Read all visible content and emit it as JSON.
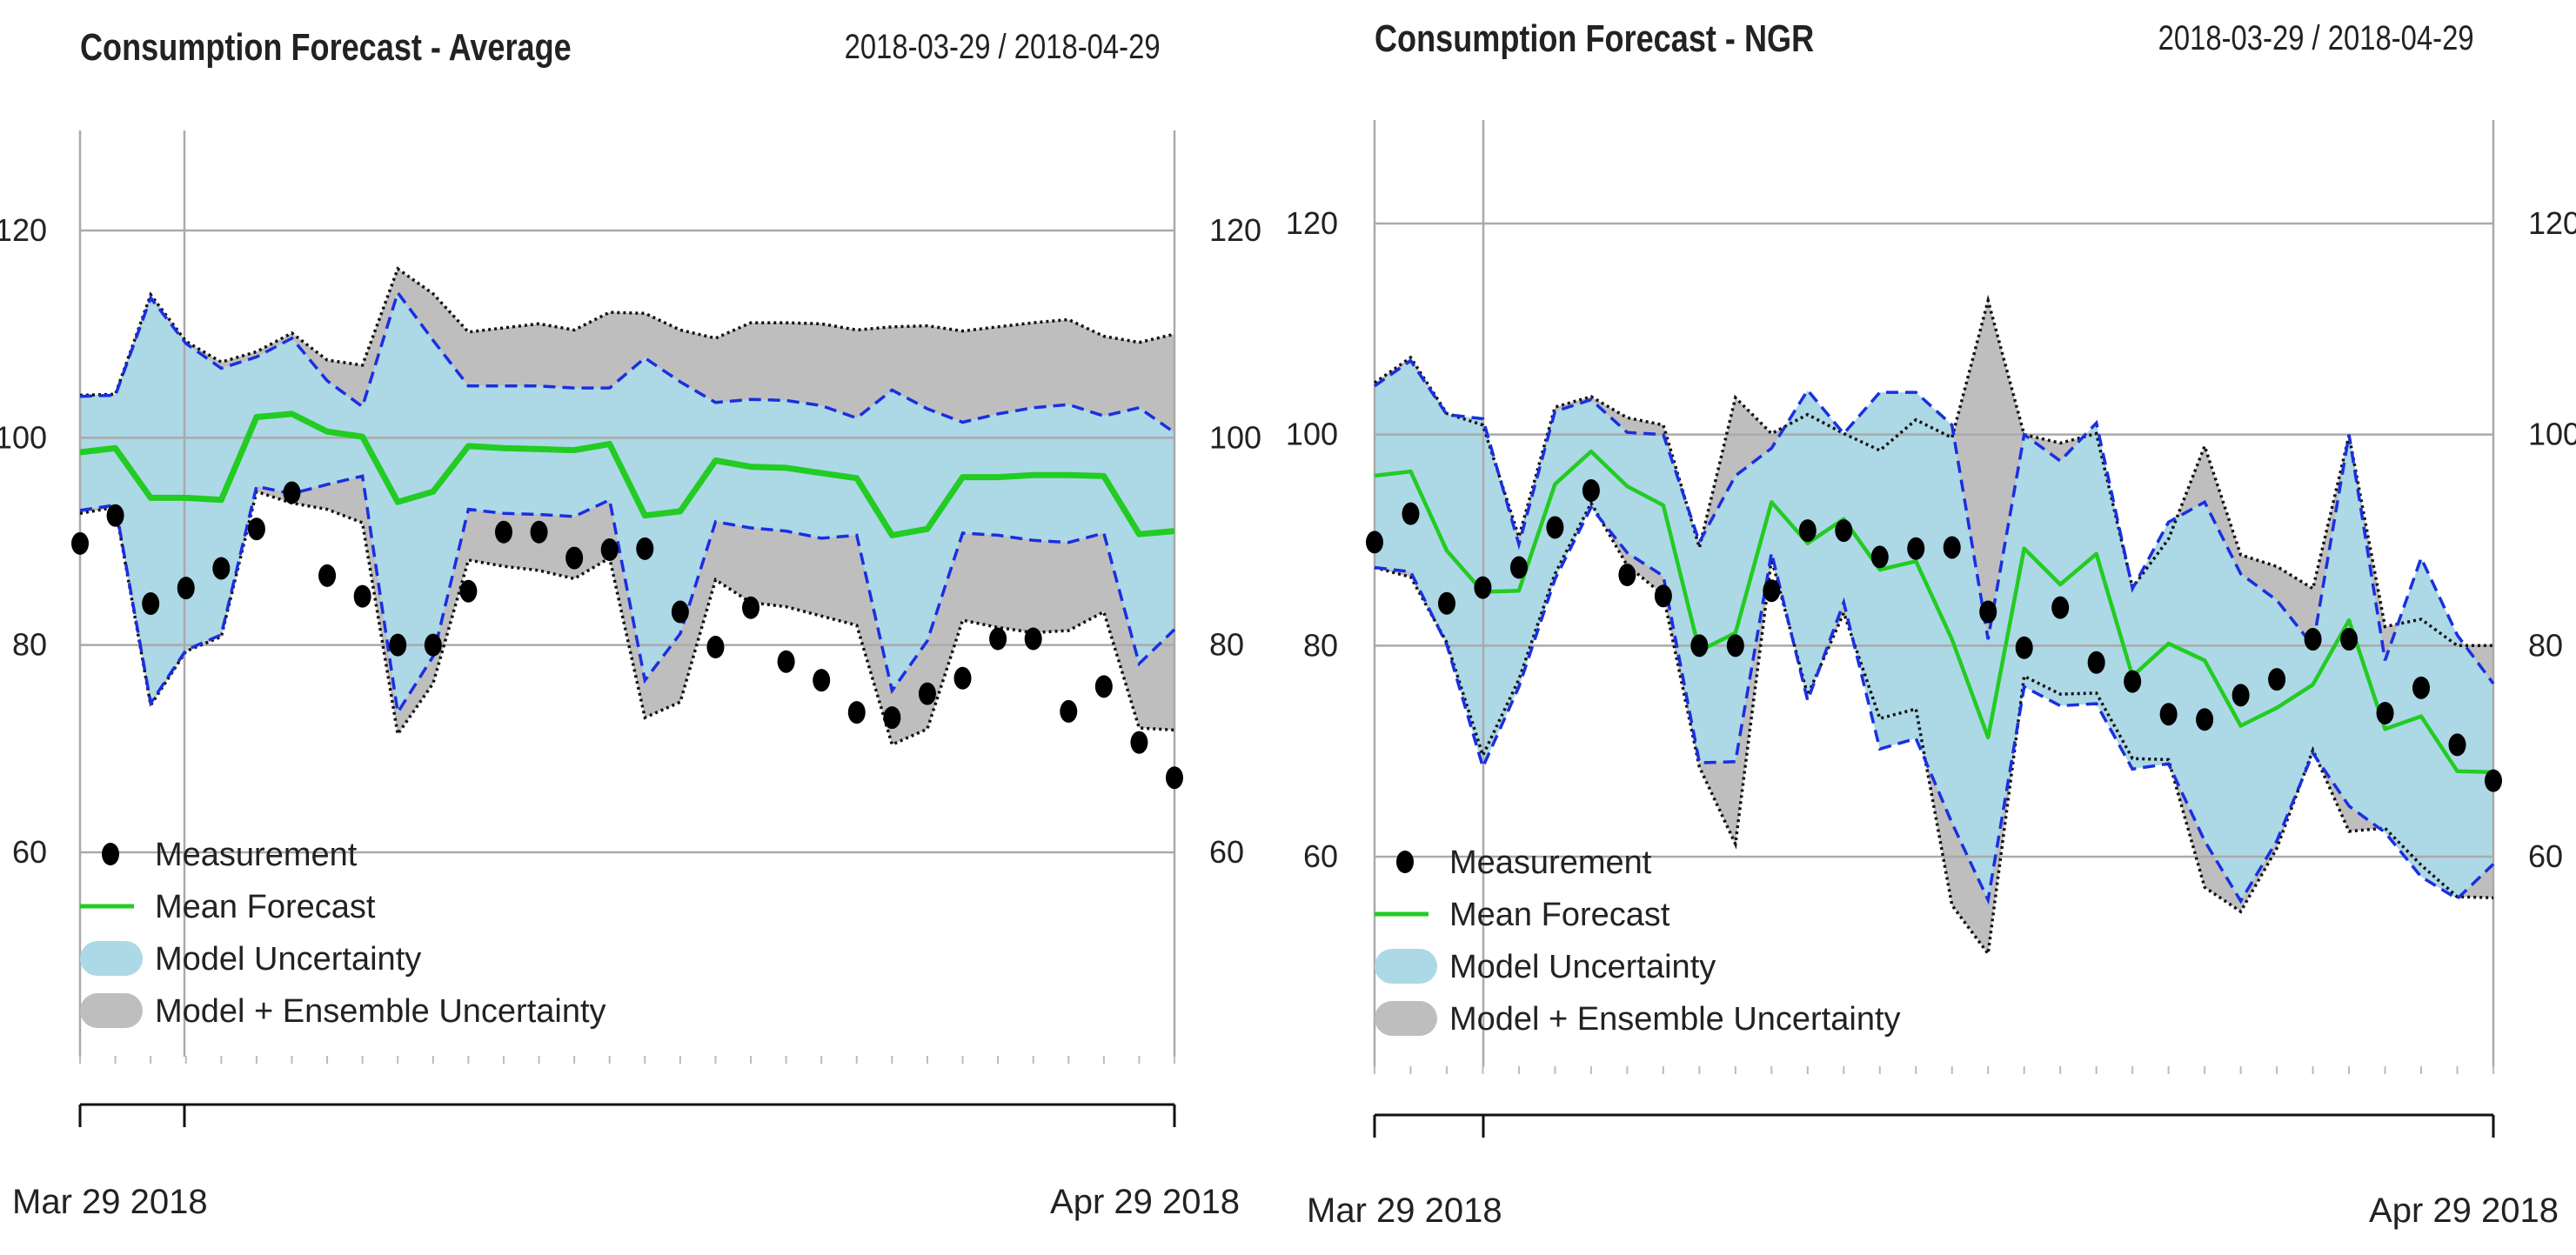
{
  "charts": [
    {
      "title": "Consumption Forecast - Average",
      "date_range": "2018-03-29 / 2018-04-29"
    },
    {
      "title": "Consumption Forecast - NGR",
      "date_range": "2018-03-29 / 2018-04-29"
    }
  ],
  "colors": {
    "measurement": "#000000",
    "mean_forecast": "#22cc22",
    "model_uncertainty": "#add8e6",
    "ensemble_uncertainty": "#bebebe",
    "model_bound": "#1a2fe0",
    "ensemble_bound": "#111111",
    "grid": "#aaaaaa"
  },
  "chart_data": [
    {
      "type": "line",
      "title": "Consumption Forecast - Average",
      "date_range": "2018-03-29 / 2018-04-29",
      "xlabel": "",
      "ylabel": "",
      "ylim": [
        40,
        130
      ],
      "yticks": [
        60,
        80,
        100,
        120
      ],
      "x_tick_labels": [
        {
          "day": 0,
          "label": "Mar 29 2018"
        },
        {
          "day": 31,
          "label": "Apr 29 2018"
        }
      ],
      "grid": true,
      "legend": [
        "Measurement",
        "Mean Forecast",
        "Model Uncertainty",
        "Model + Ensemble Uncertainty"
      ],
      "legend_position": "bottom-left",
      "series": [
        {
          "name": "Measurement",
          "kind": "points",
          "x": [
            0,
            1,
            2,
            3,
            4,
            5,
            6,
            7,
            8,
            9,
            10,
            11,
            12,
            13,
            14,
            15,
            16,
            17,
            18,
            19,
            20,
            21,
            22,
            23,
            24,
            25,
            26,
            27,
            28,
            29,
            30,
            31
          ],
          "values": [
            89.8,
            92.5,
            84,
            85.5,
            87.4,
            91.2,
            94.7,
            86.7,
            84.7,
            80,
            80,
            85.2,
            90.9,
            90.9,
            88.4,
            89.2,
            89.3,
            83.2,
            79.8,
            83.6,
            78.4,
            76.6,
            73.5,
            73,
            75.3,
            76.8,
            80.6,
            80.6,
            73.6,
            76,
            70.6,
            67.2
          ]
        },
        {
          "name": "Mean Forecast",
          "kind": "line",
          "x": [
            0,
            1,
            2,
            3,
            4,
            5,
            6,
            7,
            8,
            9,
            10,
            11,
            12,
            13,
            14,
            15,
            16,
            17,
            18,
            19,
            20,
            21,
            22,
            23,
            24,
            25,
            26,
            27,
            28,
            29,
            30,
            31
          ],
          "values": [
            98.6,
            99,
            94.2,
            94.2,
            94,
            102,
            102.3,
            100.6,
            100.1,
            93.8,
            94.8,
            99.2,
            99,
            98.9,
            98.8,
            99.4,
            92.5,
            92.9,
            97.8,
            97.2,
            97.1,
            96.6,
            96.1,
            90.6,
            91.2,
            96.2,
            96.2,
            96.4,
            96.4,
            96.3,
            90.7,
            91
          ]
        },
        {
          "name": "Model Uncertainty",
          "kind": "band",
          "upper": [
            104,
            104.1,
            113.5,
            109.1,
            106.7,
            107.8,
            109.6,
            105.5,
            103,
            114,
            109.4,
            105,
            105,
            105,
            104.8,
            104.8,
            107.7,
            105.4,
            103.4,
            103.7,
            103.6,
            103.1,
            101.9,
            104.6,
            102.8,
            101.5,
            102.3,
            102.9,
            103.2,
            102.1,
            102.9,
            100.5
          ],
          "lower": [
            93,
            93.5,
            74.4,
            79.5,
            81,
            95.3,
            94.6,
            95.5,
            96.3,
            73.5,
            78.9,
            93.1,
            92.7,
            92.6,
            92.4,
            94,
            76.6,
            81.1,
            91.9,
            91.3,
            91,
            90.3,
            90.6,
            75.6,
            80.4,
            90.8,
            90.6,
            90.1,
            89.9,
            90.8,
            78.2,
            81.5
          ]
        },
        {
          "name": "Model + Ensemble Uncertainty",
          "kind": "band",
          "upper": [
            104.1,
            104.2,
            113.8,
            109.3,
            107.3,
            108.3,
            110.1,
            107.5,
            107,
            116.3,
            113.9,
            110.2,
            110.6,
            111,
            110.4,
            112.1,
            112,
            110.4,
            109.6,
            111.1,
            111.1,
            111,
            110.4,
            110.7,
            110.8,
            110.3,
            110.7,
            111.1,
            111.4,
            109.8,
            109.2,
            110
          ]
        },
        {
          "name": "Model + Ensemble Uncertainty (lower)",
          "kind": "band-lower",
          "lower": [
            92.7,
            93.3,
            74.2,
            79.4,
            80.8,
            94.8,
            93.7,
            93.1,
            91.8,
            71.4,
            76.3,
            88.2,
            87.6,
            87.2,
            86.4,
            88.4,
            73,
            74.5,
            86.3,
            84.1,
            83.7,
            82.8,
            81.9,
            70.4,
            71.9,
            82.4,
            81.7,
            81.2,
            81.4,
            83.2,
            72,
            71.8
          ]
        }
      ]
    },
    {
      "type": "line",
      "title": "Consumption Forecast - NGR",
      "date_range": "2018-03-29 / 2018-04-29",
      "xlabel": "",
      "ylabel": "",
      "ylim": [
        40,
        130
      ],
      "yticks": [
        60,
        80,
        100,
        120
      ],
      "x_tick_labels": [
        {
          "day": 0,
          "label": "Mar 29 2018"
        },
        {
          "day": 31,
          "label": "Apr 29 2018"
        }
      ],
      "grid": true,
      "legend": [
        "Measurement",
        "Mean Forecast",
        "Model Uncertainty",
        "Model + Ensemble Uncertainty"
      ],
      "legend_position": "bottom-left",
      "series": [
        {
          "name": "Measurement",
          "kind": "points",
          "x": [
            0,
            1,
            2,
            3,
            4,
            5,
            6,
            7,
            8,
            9,
            10,
            11,
            12,
            13,
            14,
            15,
            16,
            17,
            18,
            19,
            20,
            21,
            22,
            23,
            24,
            25,
            26,
            27,
            28,
            29,
            30,
            31
          ],
          "values": [
            89.8,
            92.5,
            84,
            85.5,
            87.4,
            91.2,
            94.7,
            86.7,
            84.7,
            80,
            80,
            85.2,
            90.9,
            90.9,
            88.4,
            89.2,
            89.3,
            83.2,
            79.8,
            83.6,
            78.4,
            76.6,
            73.5,
            73,
            75.3,
            76.8,
            80.6,
            80.6,
            73.6,
            76,
            70.6,
            67.2
          ]
        },
        {
          "name": "Mean Forecast",
          "kind": "line",
          "x": [
            0,
            1,
            2,
            3,
            4,
            5,
            6,
            7,
            8,
            9,
            10,
            11,
            12,
            13,
            14,
            15,
            16,
            17,
            18,
            19,
            20,
            21,
            22,
            23,
            24,
            25,
            26,
            27,
            28,
            29,
            30,
            31
          ],
          "values": [
            96.1,
            96.5,
            89,
            85.1,
            85.2,
            95.3,
            98.4,
            95.1,
            93.3,
            79.5,
            81.2,
            93.6,
            89.7,
            92,
            87.2,
            88,
            80.6,
            71.3,
            89.2,
            85.8,
            88.7,
            77.1,
            80.2,
            78.6,
            72.4,
            74.1,
            76.3,
            82.4,
            72.1,
            73.3,
            68.1,
            68
          ]
        },
        {
          "name": "Model Uncertainty",
          "kind": "band",
          "upper": [
            104.6,
            107,
            101.9,
            101.5,
            89.6,
            102.2,
            103.3,
            100.2,
            100,
            89.8,
            96.1,
            98.7,
            104.2,
            100.1,
            104,
            104,
            100.9,
            80.6,
            100,
            97.5,
            101.1,
            85.4,
            91.7,
            93.6,
            86.8,
            84.3,
            80,
            100,
            78.6,
            88.3,
            81,
            76.4
          ],
          "lower": [
            87.4,
            87,
            80.1,
            68.5,
            76.1,
            86.3,
            93.1,
            88.8,
            86.6,
            68.9,
            69,
            88.8,
            74.8,
            84.1,
            70.2,
            71.2,
            63.2,
            55.9,
            76.1,
            74.3,
            74.5,
            68.3,
            68.8,
            61.5,
            55.8,
            61.5,
            69.8,
            64.8,
            62.3,
            58.1,
            56,
            59.3
          ]
        },
        {
          "name": "Model + Ensemble Uncertainty",
          "kind": "band",
          "upper": [
            104.9,
            107.3,
            102,
            100.9,
            90.3,
            102.6,
            103.6,
            101.6,
            100.9,
            89.3,
            103.5,
            100.1,
            101.9,
            100.1,
            98.5,
            101.4,
            99.7,
            112.7,
            100,
            99.2,
            100.1,
            85.5,
            90.1,
            98.9,
            88.6,
            87.5,
            85.4,
            99.9,
            81.8,
            82.5,
            80,
            80
          ]
        },
        {
          "name": "Model + Ensemble Uncertainty (lower)",
          "kind": "band-lower",
          "lower": [
            87.4,
            86.5,
            80.3,
            69.6,
            76.8,
            86.8,
            93.5,
            87.6,
            84.8,
            68.5,
            61.2,
            88.2,
            75.3,
            83.1,
            73.1,
            74,
            55.4,
            50.8,
            77.1,
            75.4,
            75.5,
            69.3,
            69.2,
            57.1,
            54.8,
            60.8,
            70.1,
            62.4,
            62.7,
            59.2,
            56.2,
            56.1
          ]
        }
      ]
    }
  ]
}
